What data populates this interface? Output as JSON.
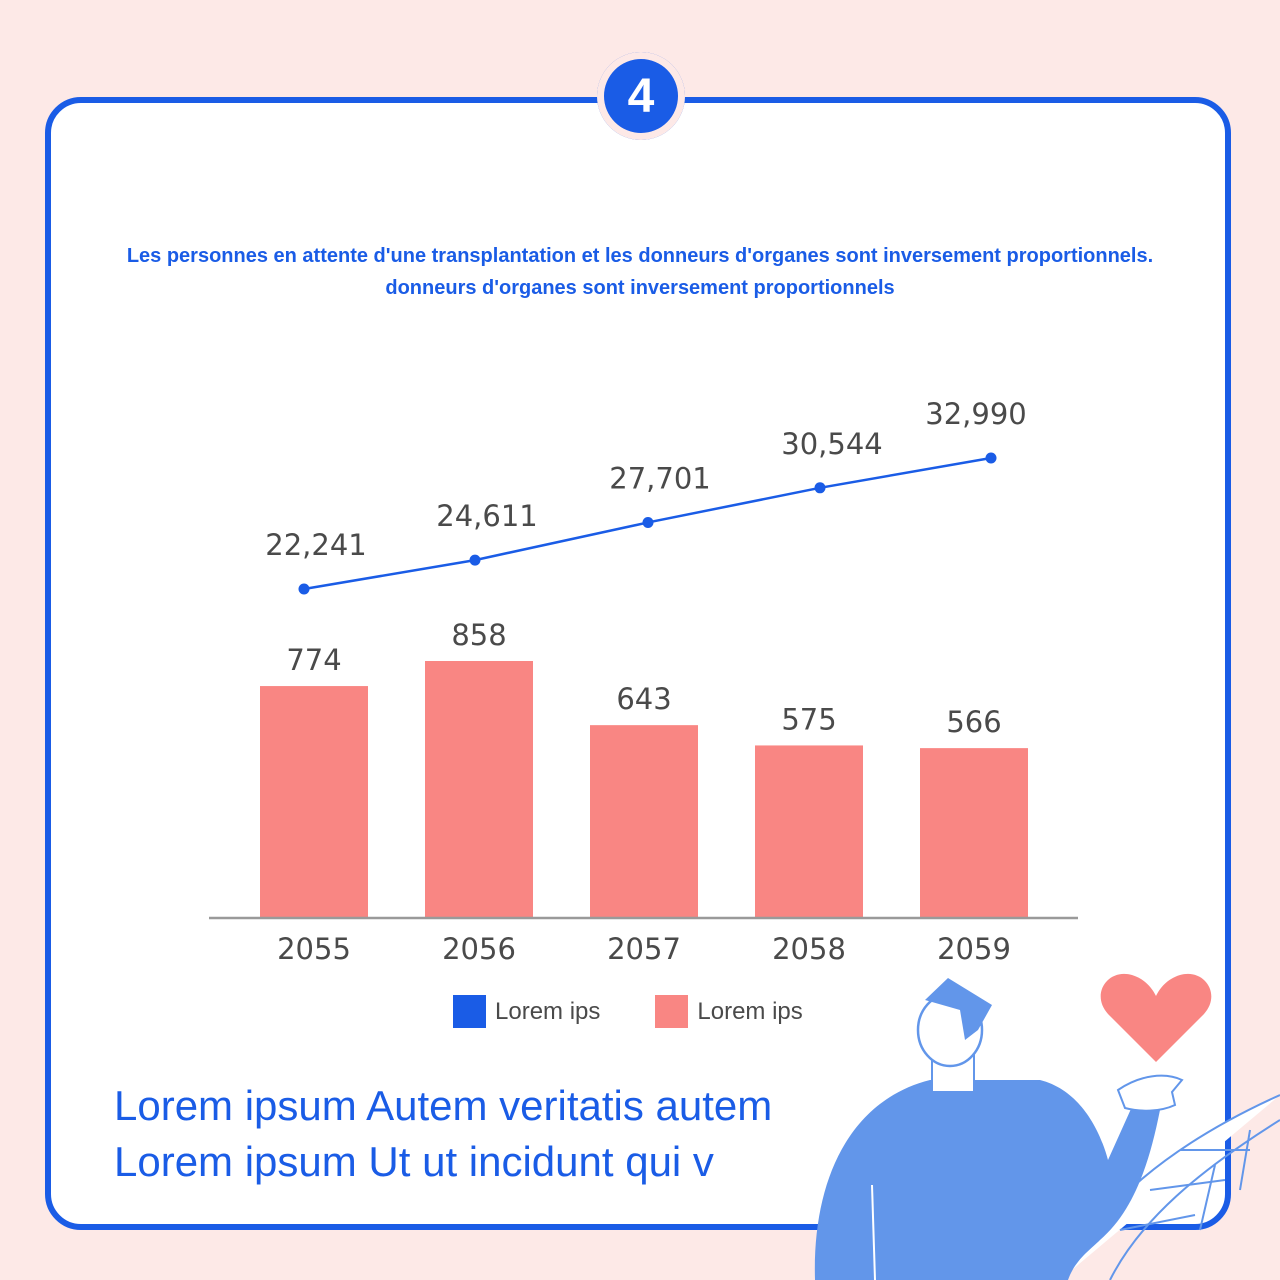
{
  "badge": {
    "number": "4"
  },
  "heading": {
    "line1": "Les personnes en attente d'une transplantation et les donneurs d'organes sont inversement proportionnels.",
    "line2": "donneurs d'organes sont inversement proportionnels"
  },
  "colors": {
    "line": "#1a5ce6",
    "bar": "#f98683",
    "accent": "#1a5ce6",
    "illustration": "#6296ea"
  },
  "chart_data": {
    "type": "bar",
    "categories": [
      "2055",
      "2056",
      "2057",
      "2058",
      "2059"
    ],
    "series": [
      {
        "name": "Lorem ips",
        "kind": "line",
        "values": [
          22241,
          24611,
          27701,
          30544,
          32990
        ],
        "labels": [
          "22,241",
          "24,611",
          "27,701",
          "30,544",
          "32,990"
        ]
      },
      {
        "name": "Lorem ips",
        "kind": "bar",
        "values": [
          774,
          858,
          643,
          575,
          566
        ],
        "labels": [
          "774",
          "858",
          "643",
          "575",
          "566"
        ]
      }
    ],
    "title": "",
    "xlabel": "",
    "ylabel": "",
    "legend_position": "bottom",
    "grid": false
  },
  "legend": [
    {
      "label": "Lorem ips",
      "color": "#1a5ce6"
    },
    {
      "label": "Lorem ips",
      "color": "#f98683"
    }
  ],
  "caption": {
    "line1": "Lorem ipsum Autem veritatis autem",
    "line2": "Lorem ipsum Ut ut incidunt qui v"
  },
  "illustration": {
    "person": "person-icon",
    "heart": "heart-icon",
    "leaf": "leaf-icon"
  }
}
